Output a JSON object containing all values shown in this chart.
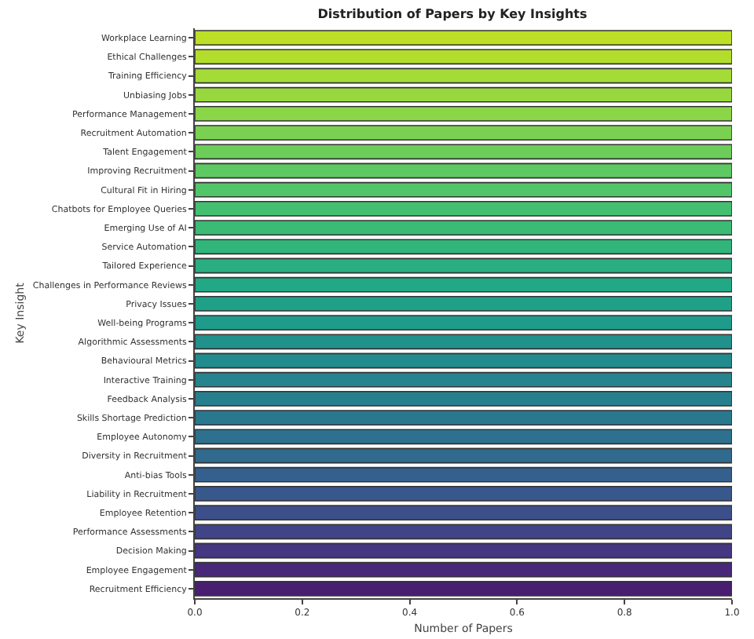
{
  "chart_data": {
    "type": "bar",
    "orientation": "horizontal",
    "title": "Distribution of Papers by Key Insights",
    "xlabel": "Number of Papers",
    "ylabel": "Key Insight",
    "categories": [
      "Workplace Learning",
      "Ethical Challenges",
      "Training Efficiency",
      "Unbiasing Jobs",
      "Performance Management",
      "Recruitment Automation",
      "Talent Engagement",
      "Improving Recruitment",
      "Cultural Fit in Hiring",
      "Chatbots for Employee Queries",
      "Emerging Use of AI",
      "Service Automation",
      "Tailored Experience",
      "Challenges in Performance Reviews",
      "Privacy Issues",
      "Well-being Programs",
      "Algorithmic Assessments",
      "Behavioural Metrics",
      "Interactive Training",
      "Feedback Analysis",
      "Skills Shortage Prediction",
      "Employee Autonomy",
      "Diversity in Recruitment",
      "Anti-bias Tools",
      "Liability in Recruitment",
      "Employee Retention",
      "Performance Assessments",
      "Decision Making",
      "Employee Engagement",
      "Recruitment Efficiency"
    ],
    "values": [
      1,
      1,
      1,
      1,
      1,
      1,
      1,
      1,
      1,
      1,
      1,
      1,
      1,
      1,
      1,
      1,
      1,
      1,
      1,
      1,
      1,
      1,
      1,
      1,
      1,
      1,
      1,
      1,
      1,
      1
    ],
    "colors": [
      "#bddf26",
      "#b2dd2d",
      "#a5db36",
      "#98d83e",
      "#8bd646",
      "#7ad151",
      "#6ccd5a",
      "#5ec962",
      "#52c569",
      "#44bf70",
      "#3bbb75",
      "#31b57b",
      "#28ae80",
      "#22a884",
      "#1fa188",
      "#1e9b8a",
      "#21918c",
      "#228b8d",
      "#25848e",
      "#277f8e",
      "#2a788e",
      "#2d718e",
      "#306a8e",
      "#355f8d",
      "#38588c",
      "#3c4f8a",
      "#414487",
      "#453781",
      "#482878",
      "#481f70"
    ],
    "xlim": [
      0,
      1
    ],
    "xticks": [
      {
        "value": 0,
        "label": "0.0"
      },
      {
        "value": 0.2,
        "label": "0.2"
      },
      {
        "value": 0.4,
        "label": "0.4"
      },
      {
        "value": 0.6,
        "label": "0.6"
      },
      {
        "value": 0.8,
        "label": "0.8"
      },
      {
        "value": 1,
        "label": "1.0"
      }
    ],
    "grid": false
  }
}
